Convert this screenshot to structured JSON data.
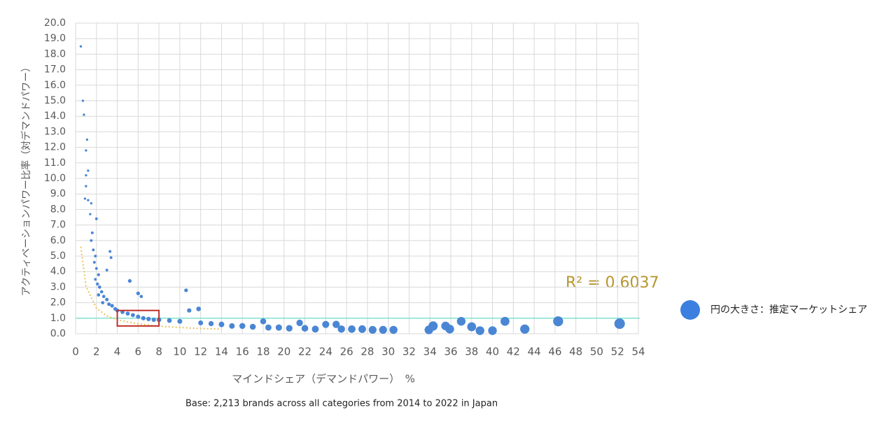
{
  "chart_data": {
    "type": "bubble",
    "x_label": "マインドシェア（デマンドパワー）　%",
    "y_label": "アクティベーションパワー比率（対デマンドパワー）",
    "footnote": "Base: 2,213 brands across all categories from 2014 to 2022 in Japan",
    "annotation": "R² = 0.6037",
    "annotation_color": "#b8962e",
    "xlim": [
      0,
      54
    ],
    "ylim": [
      0,
      20
    ],
    "xticks": [
      0,
      2,
      4,
      6,
      8,
      10,
      12,
      14,
      16,
      18,
      20,
      22,
      24,
      26,
      28,
      30,
      32,
      34,
      36,
      38,
      40,
      42,
      44,
      46,
      48,
      50,
      52,
      54
    ],
    "yticks": [
      {
        "value": 0,
        "label": "0.0"
      },
      {
        "value": 1,
        "label": "1.0"
      },
      {
        "value": 2,
        "label": "2.0"
      },
      {
        "value": 3,
        "label": "3.0"
      },
      {
        "value": 4,
        "label": "4.0"
      },
      {
        "value": 5,
        "label": "5.0"
      },
      {
        "value": 6,
        "label": "6.0"
      },
      {
        "value": 7,
        "label": "7.0"
      },
      {
        "value": 8,
        "label": "8.0"
      },
      {
        "value": 9,
        "label": "9.0"
      },
      {
        "value": 10,
        "label": "10.0"
      },
      {
        "value": 11,
        "label": "11.0"
      },
      {
        "value": 12,
        "label": "12.0"
      },
      {
        "value": 13,
        "label": "13.0"
      },
      {
        "value": 14,
        "label": "14.0"
      },
      {
        "value": 15,
        "label": "15.0"
      },
      {
        "value": 16,
        "label": "16.0"
      },
      {
        "value": 17,
        "label": "17.0"
      },
      {
        "value": 18,
        "label": "18.0"
      },
      {
        "value": 19,
        "label": "19.0"
      },
      {
        "value": 20,
        "label": "20.0"
      }
    ],
    "grid": true,
    "legend": "right",
    "series": [
      {
        "name": "円の大きさ：推定マーケットシェア",
        "color": "#4a86d4",
        "x": [
          0.5,
          0.7,
          0.8,
          1.0,
          1.1,
          1.0,
          1.2,
          1.0,
          0.9,
          1.2,
          1.5,
          1.4,
          1.6,
          1.5,
          1.7,
          1.9,
          2.0,
          1.8,
          2.0,
          2.2,
          1.9,
          2.1,
          2.3,
          2.5,
          2.2,
          2.7,
          3.0,
          2.6,
          3.2,
          3.5,
          3.3,
          3.4,
          3.0,
          3.8,
          4.0,
          4.5,
          5.0,
          5.2,
          5.5,
          6.0,
          6.5,
          7.0,
          7.5,
          6.0,
          6.3,
          8.0,
          9.0,
          10.0,
          10.6,
          10.9,
          11.8,
          12.0,
          13.0,
          14.0,
          15.0,
          16.0,
          17.0,
          18.0,
          18.5,
          19.5,
          20.5,
          21.5,
          22.0,
          23.0,
          24.0,
          25.0,
          25.5,
          26.5,
          27.5,
          28.5,
          29.5,
          30.5,
          33.9,
          34.3,
          35.5,
          35.9,
          37.0,
          38.0,
          38.8,
          40.0,
          41.2,
          43.1,
          46.3,
          52.2
        ],
        "values": [
          18.5,
          15.0,
          14.1,
          11.8,
          12.5,
          10.2,
          10.5,
          9.5,
          8.7,
          8.6,
          8.4,
          7.7,
          6.5,
          6.0,
          5.4,
          5.0,
          7.4,
          4.6,
          4.2,
          3.8,
          3.5,
          3.2,
          3.0,
          2.7,
          2.5,
          2.4,
          2.2,
          2.0,
          1.9,
          1.8,
          5.3,
          4.9,
          4.1,
          1.6,
          1.5,
          1.4,
          1.3,
          3.4,
          1.2,
          1.1,
          1.0,
          0.95,
          0.9,
          2.6,
          2.4,
          0.9,
          0.85,
          0.8,
          2.8,
          1.5,
          1.6,
          0.7,
          0.65,
          0.6,
          0.5,
          0.5,
          0.45,
          0.8,
          0.4,
          0.4,
          0.35,
          0.7,
          0.35,
          0.3,
          0.6,
          0.6,
          0.3,
          0.3,
          0.3,
          0.25,
          0.25,
          0.25,
          0.25,
          0.5,
          0.5,
          0.3,
          0.8,
          0.45,
          0.2,
          0.2,
          0.8,
          0.3,
          0.8,
          0.65
        ],
        "sizes": [
          0.05,
          0.05,
          0.05,
          0.05,
          0.05,
          0.05,
          0.05,
          0.05,
          0.05,
          0.05,
          0.05,
          0.05,
          0.1,
          0.1,
          0.1,
          0.1,
          0.1,
          0.1,
          0.1,
          0.15,
          0.1,
          0.15,
          0.2,
          0.2,
          0.2,
          0.2,
          0.25,
          0.2,
          0.25,
          0.3,
          0.1,
          0.1,
          0.1,
          0.3,
          0.35,
          0.4,
          0.4,
          0.3,
          0.4,
          0.45,
          0.5,
          0.5,
          0.5,
          0.3,
          0.2,
          0.6,
          0.6,
          0.7,
          0.3,
          0.5,
          0.6,
          0.7,
          0.8,
          1,
          1,
          1.2,
          1.2,
          1.2,
          1.3,
          1.4,
          1.5,
          1.5,
          1.6,
          1.7,
          1.8,
          2,
          2,
          2.1,
          2.2,
          2.3,
          2.4,
          2.5,
          3,
          3.5,
          3,
          3,
          3,
          3.2,
          3,
          3,
          3.2,
          3.5,
          4.2,
          4.7
        ]
      }
    ],
    "trendline": {
      "color": "#e8c25a",
      "x": [
        0.5,
        1,
        2,
        3,
        4,
        6,
        8,
        10,
        12,
        14
      ],
      "values": [
        5.6,
        3.04,
        1.65,
        1.15,
        0.9,
        0.63,
        0.49,
        0.4,
        0.34,
        0.3
      ]
    },
    "reference_line": {
      "y": 1,
      "color": "#7fe0d0"
    },
    "highlight_box": {
      "xlim": [
        4,
        8
      ],
      "ylim": [
        0.5,
        1.5
      ],
      "color": "#c0302a"
    }
  }
}
